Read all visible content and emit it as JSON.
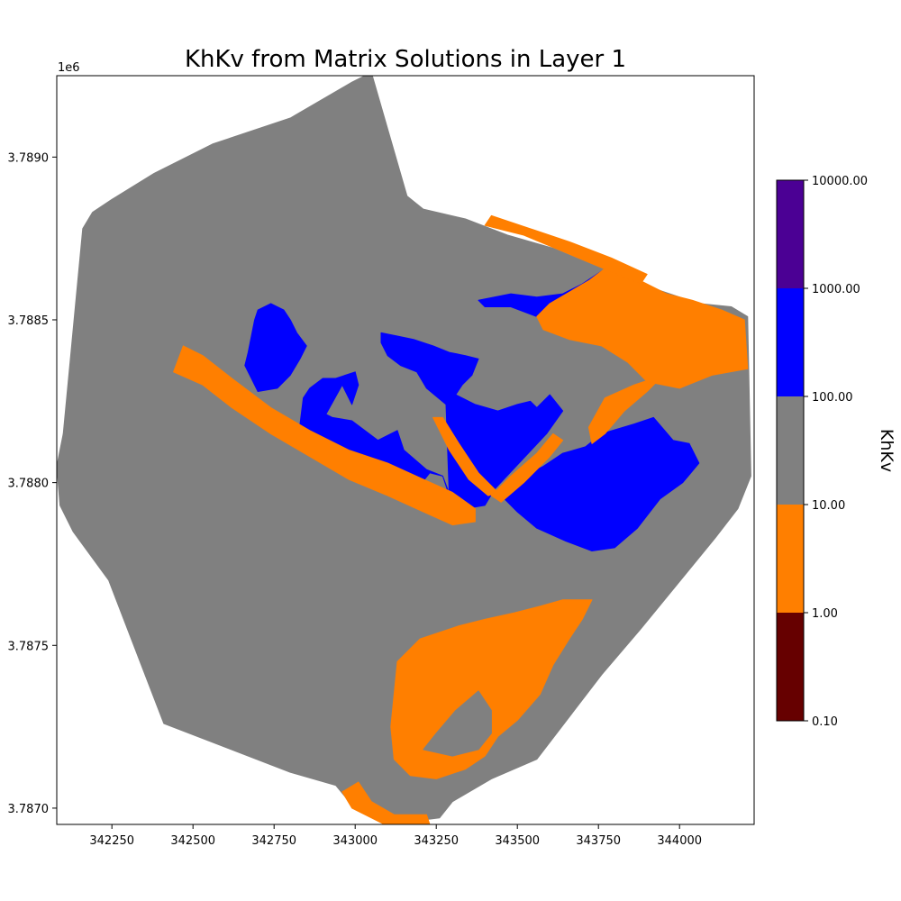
{
  "chart_data": {
    "type": "heatmap",
    "title": "KhKv from Matrix Solutions in Layer 1",
    "y_offset_label": "1e6",
    "xlim": [
      342080,
      344230
    ],
    "ylim": [
      3786950,
      3789250
    ],
    "x_ticks": [
      {
        "value": 342250,
        "label": "342250"
      },
      {
        "value": 342500,
        "label": "342500"
      },
      {
        "value": 342750,
        "label": "342750"
      },
      {
        "value": 343000,
        "label": "343000"
      },
      {
        "value": 343250,
        "label": "343250"
      },
      {
        "value": 343500,
        "label": "343500"
      },
      {
        "value": 343750,
        "label": "343750"
      },
      {
        "value": 344000,
        "label": "344000"
      }
    ],
    "y_ticks": [
      {
        "value": 3789000,
        "label": "3.7890"
      },
      {
        "value": 3788500,
        "label": "3.7885"
      },
      {
        "value": 3788000,
        "label": "3.7880"
      },
      {
        "value": 3787500,
        "label": "3.7875"
      },
      {
        "value": 3787000,
        "label": "3.7870"
      }
    ],
    "colorbar": {
      "label": "KhKv",
      "scale": "log",
      "boundaries": [
        {
          "value": 0.1,
          "label": "0.10"
        },
        {
          "value": 1,
          "label": "1.00"
        },
        {
          "value": 10,
          "label": "10.00"
        },
        {
          "value": 100,
          "label": "100.00"
        },
        {
          "value": 1000,
          "label": "1000.00"
        },
        {
          "value": 10000,
          "label": "10000.00"
        }
      ],
      "colors": [
        "#660000",
        "#ff7f00",
        "#808080",
        "#0000ff",
        "#4b0094"
      ]
    },
    "regions": [
      {
        "name": "model-domain",
        "color": "#808080",
        "points": [
          [
            342160,
            3788780
          ],
          [
            342190,
            3788830
          ],
          [
            342250,
            3788870
          ],
          [
            342380,
            3788950
          ],
          [
            342560,
            3789040
          ],
          [
            342800,
            3789120
          ],
          [
            342990,
            3789230
          ],
          [
            343050,
            3789260
          ],
          [
            343160,
            3788880
          ],
          [
            343210,
            3788840
          ],
          [
            343340,
            3788810
          ],
          [
            343470,
            3788760
          ],
          [
            343610,
            3788720
          ],
          [
            343780,
            3788650
          ],
          [
            343940,
            3788590
          ],
          [
            344060,
            3788550
          ],
          [
            344160,
            3788540
          ],
          [
            344210,
            3788510
          ],
          [
            344220,
            3788020
          ],
          [
            344180,
            3787920
          ],
          [
            344110,
            3787830
          ],
          [
            343880,
            3787550
          ],
          [
            343760,
            3787410
          ],
          [
            343560,
            3787150
          ],
          [
            343420,
            3787090
          ],
          [
            343300,
            3787020
          ],
          [
            343260,
            3786970
          ],
          [
            343100,
            3786950
          ],
          [
            342990,
            3787010
          ],
          [
            342940,
            3787070
          ],
          [
            342800,
            3787110
          ],
          [
            342410,
            3787260
          ],
          [
            342240,
            3787700
          ],
          [
            342130,
            3787850
          ],
          [
            342090,
            3787930
          ],
          [
            342080,
            3788050
          ],
          [
            342100,
            3788150
          ],
          [
            342160,
            3788780
          ]
        ]
      },
      {
        "name": "northwest-sand-patch",
        "color": "#0000ff",
        "points": [
          [
            342700,
            3788530
          ],
          [
            342740,
            3788550
          ],
          [
            342780,
            3788530
          ],
          [
            342800,
            3788500
          ],
          [
            342820,
            3788460
          ],
          [
            342850,
            3788420
          ],
          [
            342830,
            3788380
          ],
          [
            342800,
            3788330
          ],
          [
            342760,
            3788290
          ],
          [
            342700,
            3788280
          ],
          [
            342680,
            3788320
          ],
          [
            342660,
            3788360
          ],
          [
            342670,
            3788400
          ],
          [
            342680,
            3788450
          ],
          [
            342690,
            3788500
          ]
        ]
      },
      {
        "name": "central-channel-fill",
        "color": "#0000ff",
        "points": [
          [
            343080,
            3788460
          ],
          [
            343130,
            3788450
          ],
          [
            343180,
            3788440
          ],
          [
            343240,
            3788420
          ],
          [
            343290,
            3788400
          ],
          [
            343340,
            3788390
          ],
          [
            343380,
            3788380
          ],
          [
            343360,
            3788330
          ],
          [
            343330,
            3788300
          ],
          [
            343310,
            3788270
          ],
          [
            343370,
            3788240
          ],
          [
            343440,
            3788220
          ],
          [
            343500,
            3788240
          ],
          [
            343540,
            3788250
          ],
          [
            343560,
            3788230
          ],
          [
            343600,
            3788270
          ],
          [
            343640,
            3788220
          ],
          [
            343590,
            3788150
          ],
          [
            343430,
            3787980
          ],
          [
            343400,
            3787930
          ],
          [
            343340,
            3787920
          ],
          [
            343300,
            3787940
          ],
          [
            343270,
            3788020
          ],
          [
            343220,
            3788040
          ],
          [
            343150,
            3788100
          ],
          [
            343130,
            3788160
          ],
          [
            343070,
            3788130
          ],
          [
            342990,
            3788190
          ],
          [
            342930,
            3788200
          ],
          [
            342910,
            3788210
          ],
          [
            342960,
            3788300
          ],
          [
            342990,
            3788240
          ],
          [
            343010,
            3788300
          ],
          [
            343000,
            3788340
          ],
          [
            342970,
            3788330
          ],
          [
            342940,
            3788320
          ],
          [
            342900,
            3788320
          ],
          [
            342860,
            3788290
          ],
          [
            342840,
            3788260
          ],
          [
            342830,
            3788180
          ],
          [
            342880,
            3788140
          ],
          [
            343000,
            3788090
          ],
          [
            343090,
            3788010
          ],
          [
            343140,
            3787980
          ],
          [
            343190,
            3787980
          ],
          [
            343230,
            3788030
          ],
          [
            343270,
            3788020
          ],
          [
            343290,
            3787960
          ],
          [
            343280,
            3788240
          ],
          [
            343220,
            3788290
          ],
          [
            343190,
            3788340
          ],
          [
            343140,
            3788360
          ],
          [
            343100,
            3788390
          ],
          [
            343080,
            3788430
          ]
        ]
      },
      {
        "name": "east-sand-body",
        "color": "#0000ff",
        "points": [
          [
            343500,
            3788010
          ],
          [
            343580,
            3788050
          ],
          [
            343640,
            3788090
          ],
          [
            343710,
            3788110
          ],
          [
            343760,
            3788150
          ],
          [
            343860,
            3788180
          ],
          [
            343920,
            3788200
          ],
          [
            343980,
            3788130
          ],
          [
            344030,
            3788120
          ],
          [
            344060,
            3788060
          ],
          [
            344010,
            3788000
          ],
          [
            343940,
            3787950
          ],
          [
            343870,
            3787860
          ],
          [
            343800,
            3787800
          ],
          [
            343730,
            3787790
          ],
          [
            343650,
            3787820
          ],
          [
            343560,
            3787860
          ],
          [
            343500,
            3787910
          ],
          [
            343460,
            3787950
          ]
        ]
      },
      {
        "name": "northeast-blue-strip",
        "color": "#0000ff",
        "points": [
          [
            343380,
            3788560
          ],
          [
            343480,
            3788580
          ],
          [
            343560,
            3788570
          ],
          [
            343640,
            3788580
          ],
          [
            343700,
            3788610
          ],
          [
            343760,
            3788650
          ],
          [
            343830,
            3788630
          ],
          [
            343920,
            3788580
          ],
          [
            343900,
            3788530
          ],
          [
            343830,
            3788520
          ],
          [
            343760,
            3788500
          ],
          [
            343690,
            3788510
          ],
          [
            343630,
            3788490
          ],
          [
            343560,
            3788510
          ],
          [
            343480,
            3788540
          ],
          [
            343400,
            3788540
          ]
        ]
      },
      {
        "name": "west-orange-strip",
        "color": "#ff7f00",
        "points": [
          [
            342470,
            3788420
          ],
          [
            342530,
            3788390
          ],
          [
            342620,
            3788320
          ],
          [
            342740,
            3788230
          ],
          [
            342860,
            3788160
          ],
          [
            342980,
            3788100
          ],
          [
            343100,
            3788060
          ],
          [
            343210,
            3788010
          ],
          [
            343300,
            3787970
          ],
          [
            343370,
            3787920
          ],
          [
            343370,
            3787880
          ],
          [
            343300,
            3787870
          ],
          [
            343210,
            3787910
          ],
          [
            343100,
            3787960
          ],
          [
            342980,
            3788010
          ],
          [
            342860,
            3788080
          ],
          [
            342740,
            3788150
          ],
          [
            342620,
            3788230
          ],
          [
            342530,
            3788300
          ],
          [
            342440,
            3788340
          ]
        ]
      },
      {
        "name": "orange-diagonal-left",
        "color": "#ff7f00",
        "points": [
          [
            343240,
            3788200
          ],
          [
            343270,
            3788200
          ],
          [
            343320,
            3788120
          ],
          [
            343380,
            3788030
          ],
          [
            343440,
            3787970
          ],
          [
            343410,
            3787960
          ],
          [
            343350,
            3788010
          ],
          [
            343290,
            3788100
          ]
        ]
      },
      {
        "name": "orange-diagonal-right",
        "color": "#ff7f00",
        "points": [
          [
            343420,
            3787960
          ],
          [
            343450,
            3787940
          ],
          [
            343520,
            3788000
          ],
          [
            343600,
            3788080
          ],
          [
            343640,
            3788130
          ],
          [
            343610,
            3788150
          ],
          [
            343560,
            3788090
          ],
          [
            343480,
            3788020
          ]
        ]
      },
      {
        "name": "orange-mid-east",
        "color": "#ff7f00",
        "points": [
          [
            343720,
            3788170
          ],
          [
            343770,
            3788260
          ],
          [
            343860,
            3788300
          ],
          [
            343950,
            3788330
          ],
          [
            343900,
            3788280
          ],
          [
            343830,
            3788220
          ],
          [
            343770,
            3788150
          ],
          [
            343730,
            3788120
          ]
        ]
      },
      {
        "name": "northeast-orange-fan",
        "color": "#ff7f00",
        "points": [
          [
            343600,
            3788550
          ],
          [
            343720,
            3788620
          ],
          [
            343800,
            3788680
          ],
          [
            343880,
            3788620
          ],
          [
            343960,
            3788580
          ],
          [
            344040,
            3788560
          ],
          [
            344130,
            3788530
          ],
          [
            344200,
            3788500
          ],
          [
            344210,
            3788350
          ],
          [
            344100,
            3788330
          ],
          [
            344000,
            3788290
          ],
          [
            343900,
            3788310
          ],
          [
            343840,
            3788370
          ],
          [
            343760,
            3788420
          ],
          [
            343660,
            3788440
          ],
          [
            343580,
            3788470
          ],
          [
            343560,
            3788510
          ]
        ]
      },
      {
        "name": "north-orange-edge",
        "color": "#ff7f00",
        "points": [
          [
            343400,
            3788790
          ],
          [
            343520,
            3788760
          ],
          [
            343640,
            3788710
          ],
          [
            343760,
            3788660
          ],
          [
            343880,
            3788610
          ],
          [
            343900,
            3788640
          ],
          [
            343790,
            3788690
          ],
          [
            343660,
            3788740
          ],
          [
            343540,
            3788780
          ],
          [
            343420,
            3788820
          ]
        ]
      },
      {
        "name": "south-orange-ring",
        "color": "#ff7f00",
        "points": [
          [
            343130,
            3787450
          ],
          [
            343200,
            3787520
          ],
          [
            343320,
            3787560
          ],
          [
            343400,
            3787580
          ],
          [
            343490,
            3787600
          ],
          [
            343570,
            3787620
          ],
          [
            343640,
            3787640
          ],
          [
            343730,
            3787640
          ],
          [
            343700,
            3787580
          ],
          [
            343660,
            3787520
          ],
          [
            343610,
            3787440
          ],
          [
            343570,
            3787350
          ],
          [
            343500,
            3787270
          ],
          [
            343440,
            3787220
          ],
          [
            343400,
            3787160
          ],
          [
            343340,
            3787120
          ],
          [
            343250,
            3787090
          ],
          [
            343170,
            3787100
          ],
          [
            343120,
            3787150
          ],
          [
            343110,
            3787250
          ],
          [
            343120,
            3787350
          ]
        ]
      },
      {
        "name": "south-gray-core",
        "color": "#808080",
        "points": [
          [
            343210,
            3787180
          ],
          [
            343250,
            3787230
          ],
          [
            343310,
            3787300
          ],
          [
            343380,
            3787360
          ],
          [
            343420,
            3787300
          ],
          [
            343420,
            3787230
          ],
          [
            343380,
            3787180
          ],
          [
            343300,
            3787160
          ]
        ]
      },
      {
        "name": "south-orange-edge",
        "color": "#ff7f00",
        "points": [
          [
            342960,
            3787050
          ],
          [
            343010,
            3787080
          ],
          [
            343050,
            3787020
          ],
          [
            343120,
            3786980
          ],
          [
            343220,
            3786980
          ],
          [
            343230,
            3786950
          ],
          [
            343090,
            3786950
          ],
          [
            342990,
            3787000
          ]
        ]
      }
    ]
  }
}
